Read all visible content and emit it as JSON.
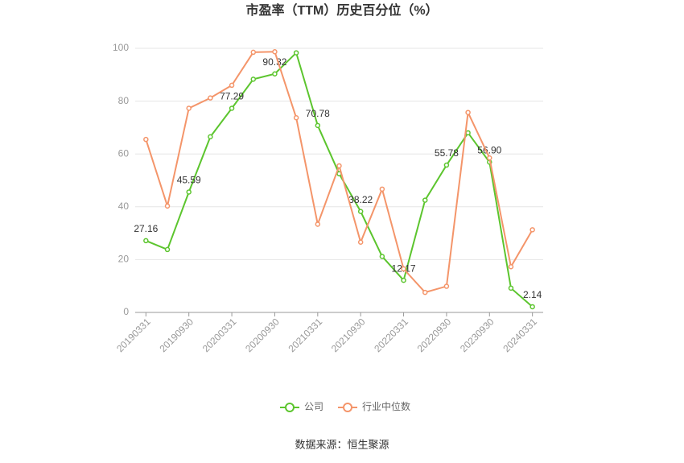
{
  "chart_data": {
    "type": "line",
    "title": "市盈率（TTM）历史百分位（%）",
    "source": "数据来源：恒生聚源",
    "categories": [
      "20190331",
      null,
      "20190930",
      null,
      "20200331",
      null,
      "20200930",
      null,
      "20210331",
      null,
      "20210930",
      null,
      "20220331",
      null,
      "20220930",
      null,
      "20230930",
      null,
      "20240331"
    ],
    "series": [
      {
        "name": "公司",
        "color": "#5cc52e",
        "values": [
          27.16,
          23.8,
          45.59,
          66.5,
          77.29,
          88.3,
          90.32,
          98.3,
          70.78,
          52.5,
          38.22,
          21.2,
          12.17,
          42.5,
          55.78,
          68.0,
          56.9,
          9.2,
          2.14
        ],
        "value_labels": [
          "27.16",
          null,
          "45.59",
          null,
          "77.29",
          null,
          "90.32",
          null,
          "70.78",
          null,
          "38.22",
          null,
          "12.17",
          null,
          "55.78",
          null,
          "56.90",
          null,
          "2.14"
        ]
      },
      {
        "name": "行业中位数",
        "color": "#f4956a",
        "values": [
          65.5,
          40.3,
          77.3,
          81.2,
          86.0,
          98.5,
          98.7,
          73.7,
          33.4,
          55.5,
          26.6,
          46.7,
          16.5,
          7.6,
          9.9,
          75.7,
          58.5,
          17.3,
          31.3
        ]
      }
    ],
    "ylim": [
      0,
      100
    ],
    "yticks": [
      0,
      20,
      40,
      60,
      80,
      100
    ],
    "grid": true,
    "legend": "bottom"
  }
}
